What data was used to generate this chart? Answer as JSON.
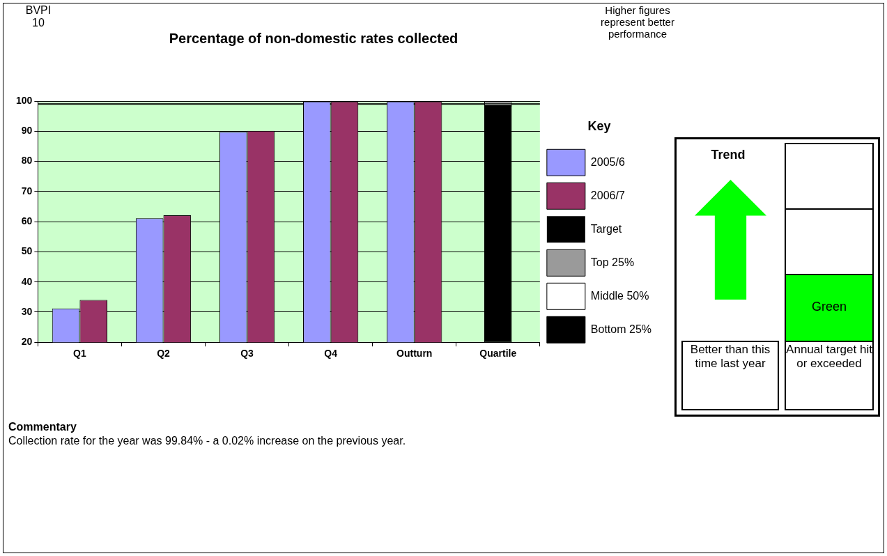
{
  "chart_data": {
    "type": "bar",
    "title": "Percentage of non-domestic rates collected",
    "categories": [
      "Q1",
      "Q2",
      "Q3",
      "Q4",
      "Outturn",
      "Quartile"
    ],
    "series": [
      {
        "name": "2005/6",
        "color": "#9999ff",
        "values": [
          31.2,
          61.1,
          89.8,
          99.8,
          99.8,
          null
        ]
      },
      {
        "name": "2006/7",
        "color": "#993366",
        "values": [
          34.0,
          62.1,
          90.1,
          99.8,
          99.8,
          null
        ]
      },
      {
        "name": "Bottom 25%",
        "color": "#000000",
        "base": [
          null,
          null,
          null,
          null,
          null,
          20
        ],
        "values": [
          null,
          null,
          null,
          null,
          null,
          78.4
        ]
      },
      {
        "name": "Middle 50%",
        "color": "#ffffff",
        "base": [
          null,
          null,
          null,
          null,
          null,
          98.4
        ],
        "values": [
          null,
          null,
          null,
          null,
          null,
          0.6
        ]
      },
      {
        "name": "Top 25%",
        "color": "#9a9a9a",
        "base": [
          null,
          null,
          null,
          null,
          null,
          99.0
        ],
        "values": [
          null,
          null,
          null,
          null,
          null,
          1.0
        ]
      }
    ],
    "ylim": [
      20,
      100
    ],
    "yticks": [
      20,
      30,
      40,
      50,
      60,
      70,
      80,
      90,
      100
    ],
    "grid": "y",
    "legend": "right",
    "legend_title": "Key",
    "ref_lines": [
      {
        "axis": "y",
        "value": 99,
        "label": "Target",
        "color": "#000000"
      }
    ],
    "annotations": [
      "BVPI 10",
      "Higher figures represent better performance",
      "Trend",
      "Green",
      "Better than this time last year",
      "Annual target hit or exceeded",
      "Commentary",
      "Collection rate for the year was 99.84% - a  0.02% increase on the previous year."
    ]
  }
}
